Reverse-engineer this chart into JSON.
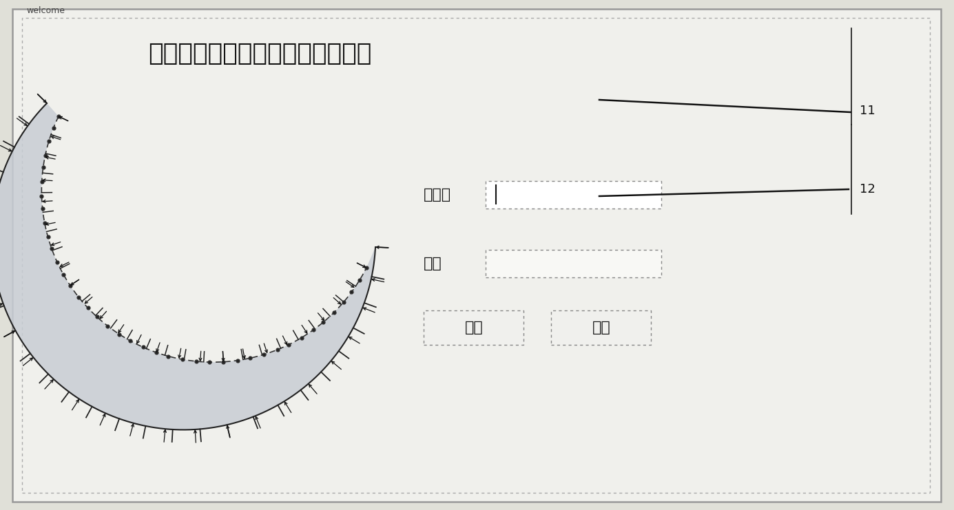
{
  "bg_color": "#e0e0d8",
  "panel_color": "#f0f0ec",
  "inner_color": "#f8f8f5",
  "outer_border_color": "#999999",
  "inner_border_color": "#aaaaaa",
  "title_text": "欢迎进入油膜轴承油膜分析系统！",
  "title_fontsize": 26,
  "welcome_text": "welcome",
  "label_11": "11",
  "label_12": "12",
  "username_label": "用户名",
  "password_label": "密码",
  "confirm_btn": "确定",
  "exit_btn": "退出",
  "film_fill_color": "#c8cdd4",
  "film_edge_color": "#222222",
  "hatch_color": "#222222",
  "arrow_color": "#111111",
  "note_line_color": "#111111",
  "shaft_curve_color": "#333333"
}
